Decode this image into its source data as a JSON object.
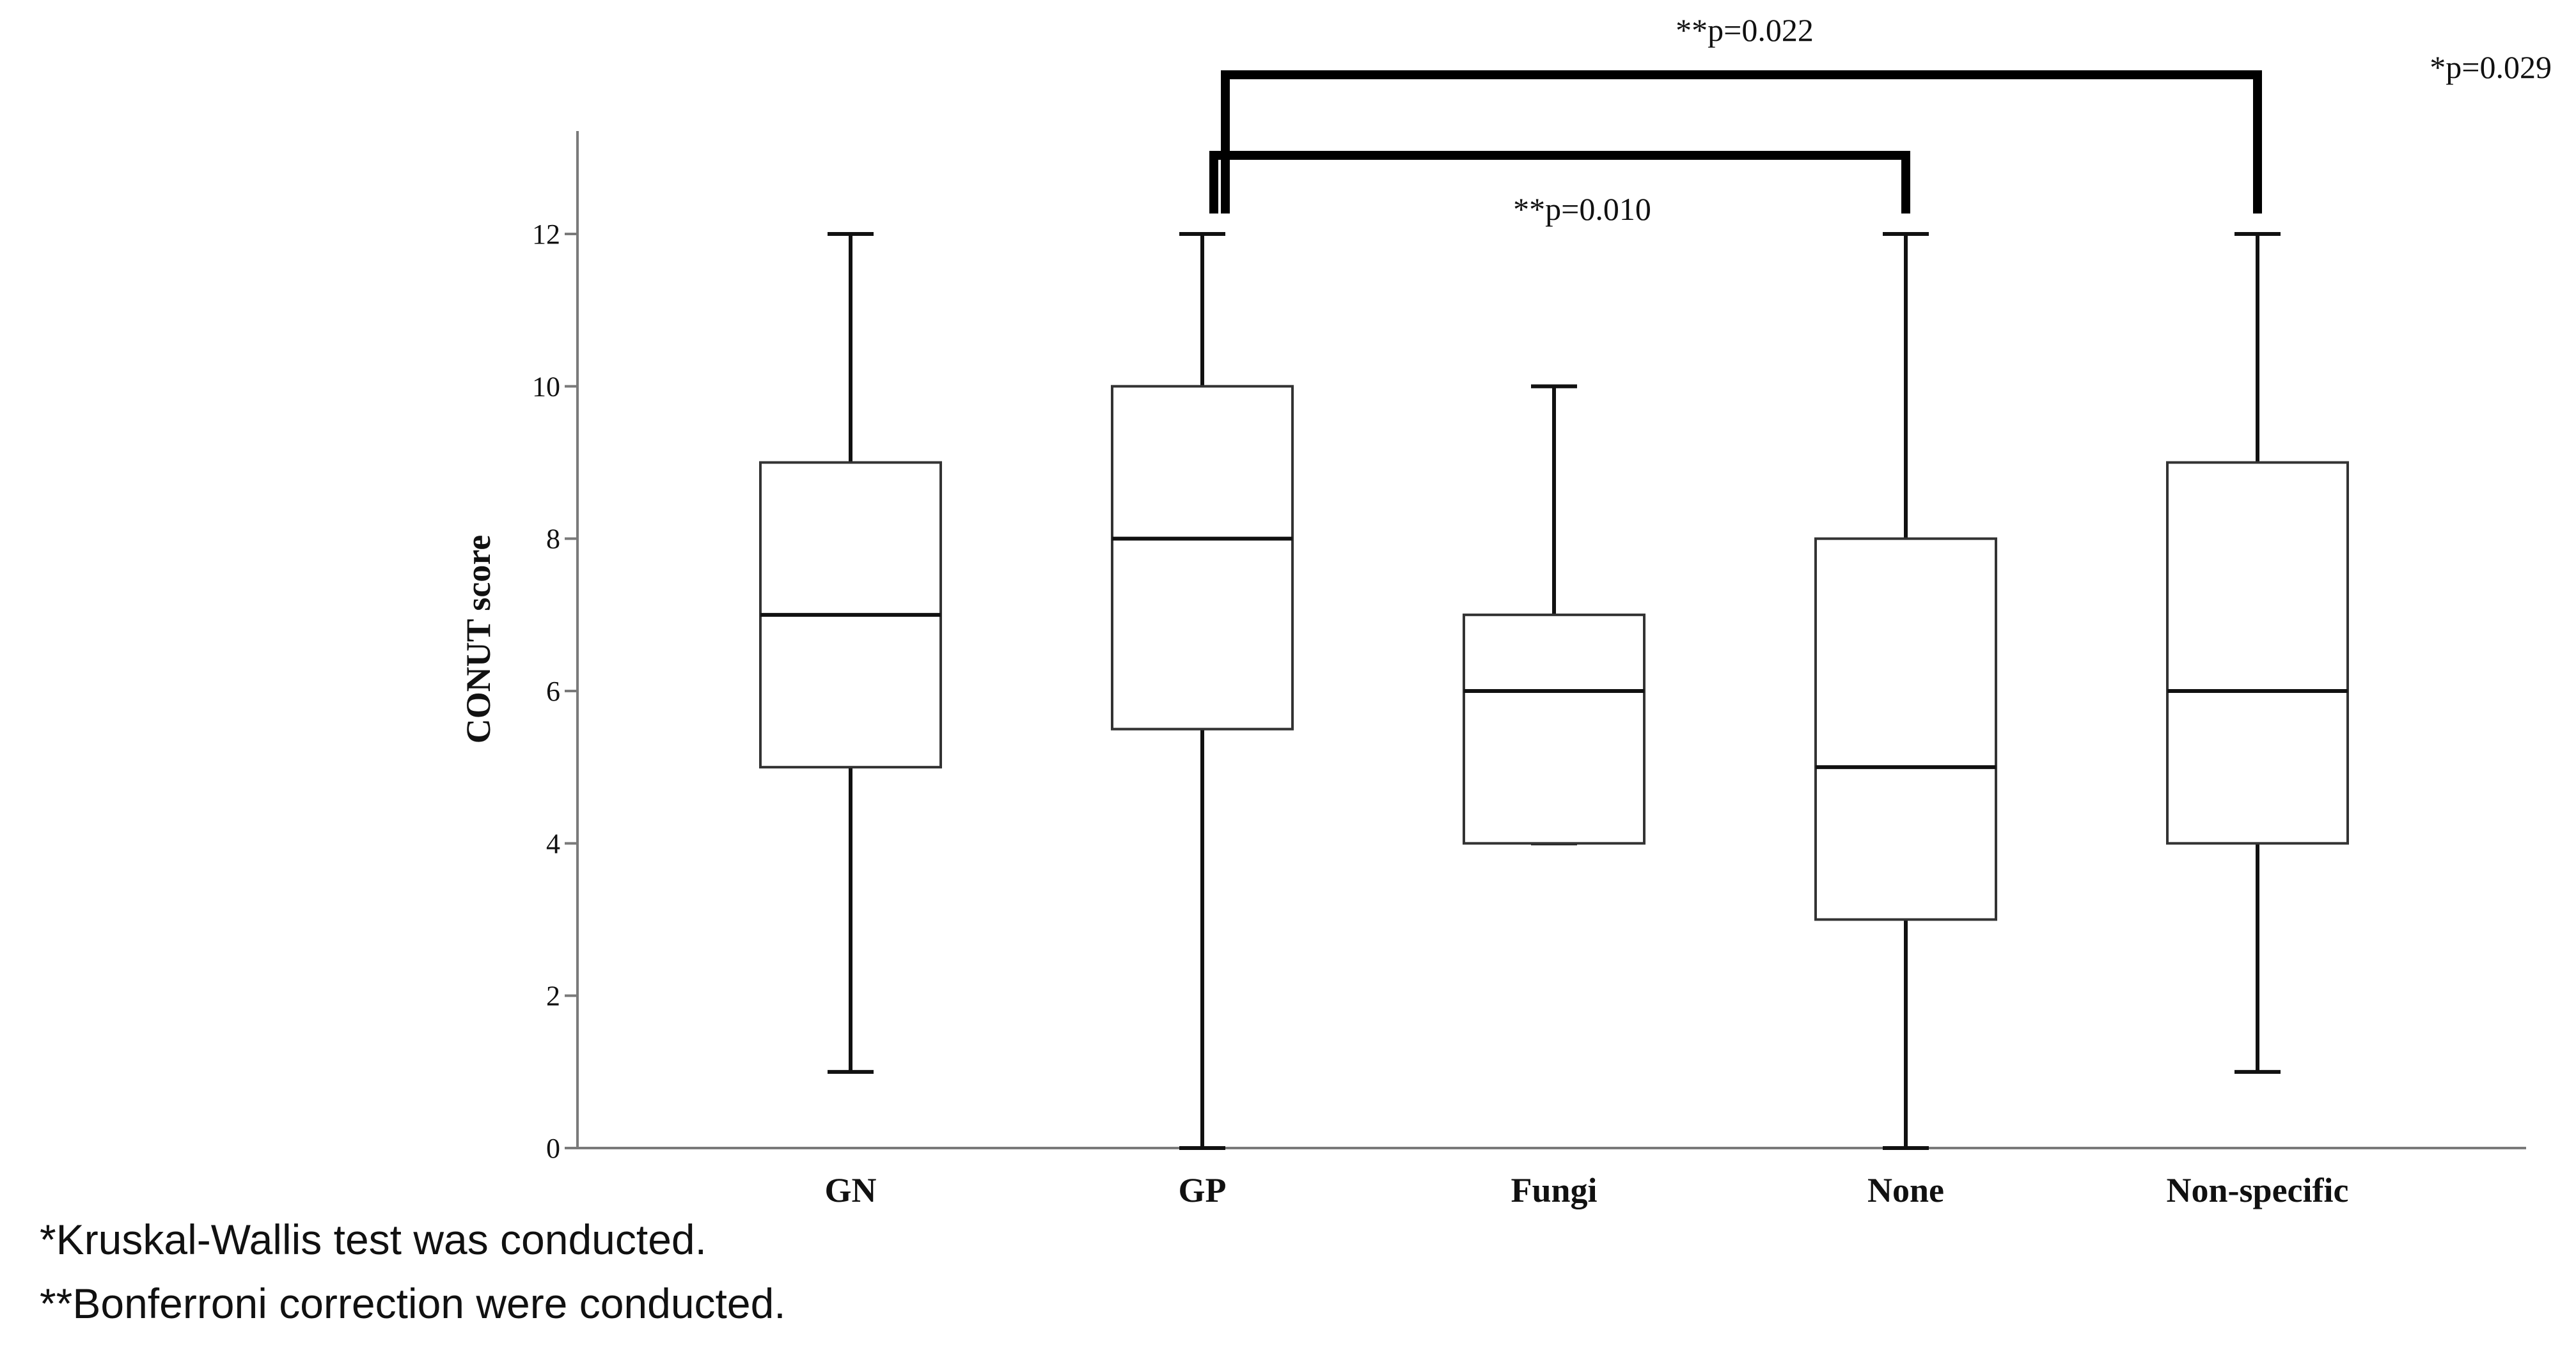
{
  "chart_data": {
    "type": "box",
    "title": "",
    "xlabel": "",
    "ylabel": "CONUT score",
    "ylim": [
      0,
      13
    ],
    "yticks": [
      "0",
      "2",
      "4",
      "6",
      "8",
      "10",
      "12"
    ],
    "grid": false,
    "categories": [
      "GN",
      "GP",
      "Fungi",
      "None",
      "Non-specific"
    ],
    "boxes": [
      {
        "category": "GN",
        "min": 1,
        "q1": 5,
        "median": 7,
        "q3": 9,
        "max": 12
      },
      {
        "category": "GP",
        "min": 0,
        "q1": 5.5,
        "median": 8,
        "q3": 10,
        "max": 12
      },
      {
        "category": "Fungi",
        "min": 4,
        "q1": 4,
        "median": 6,
        "q3": 7,
        "max": 10
      },
      {
        "category": "None",
        "min": 0,
        "q1": 3,
        "median": 5,
        "q3": 8,
        "max": 12
      },
      {
        "category": "Non-specific",
        "min": 1,
        "q1": 4,
        "median": 6,
        "q3": 9,
        "max": 12
      }
    ],
    "comparisons": [
      {
        "from": "GP",
        "to": "Non-specific",
        "label": "**p=0.022"
      },
      {
        "from": "GP",
        "to": "None",
        "label": "**p=0.010"
      }
    ],
    "overall_annotation": "*p=0.029",
    "footnotes": [
      "*Kruskal-Wallis test was conducted.",
      "**Bonferroni correction were conducted."
    ]
  }
}
